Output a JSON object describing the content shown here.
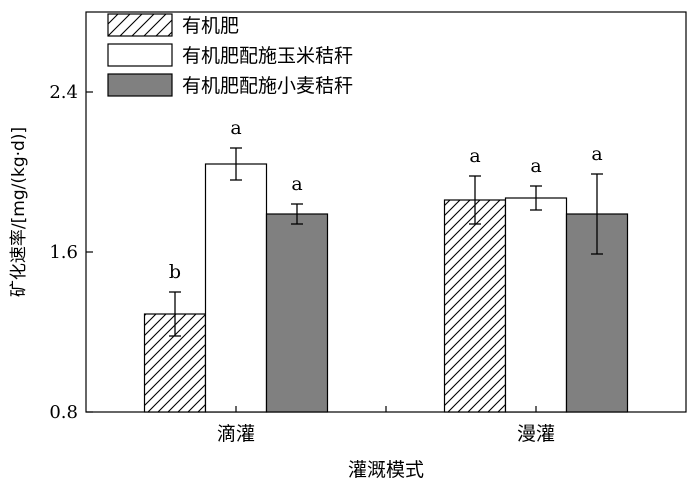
{
  "chart_data": {
    "type": "bar",
    "title": "",
    "xlabel": "灌溉模式",
    "ylabel": "矿化速率/[mg/(kg·d)]",
    "ylim": [
      0.8,
      2.8
    ],
    "yticks": [
      0.8,
      1.6,
      2.4
    ],
    "ytick_labels": [
      "0.8",
      "1.6",
      "2.4"
    ],
    "categories": [
      "滴灌",
      "漫灌"
    ],
    "grid": false,
    "legend_position": "top-left",
    "series": [
      {
        "name": "有机肥",
        "fill": "hatch",
        "values": [
          1.29,
          1.86
        ],
        "errors": [
          0.11,
          0.12
        ],
        "labels": [
          "b",
          "a"
        ]
      },
      {
        "name": "有机肥配施玉米秸秆",
        "fill": "#ffffff",
        "values": [
          2.04,
          1.87
        ],
        "errors": [
          0.08,
          0.06
        ],
        "labels": [
          "a",
          "a"
        ]
      },
      {
        "name": "有机肥配施小麦秸秆",
        "fill": "#808080",
        "values": [
          1.79,
          1.79
        ],
        "errors": [
          0.05,
          0.2
        ],
        "labels": [
          "a",
          "a"
        ]
      }
    ]
  }
}
